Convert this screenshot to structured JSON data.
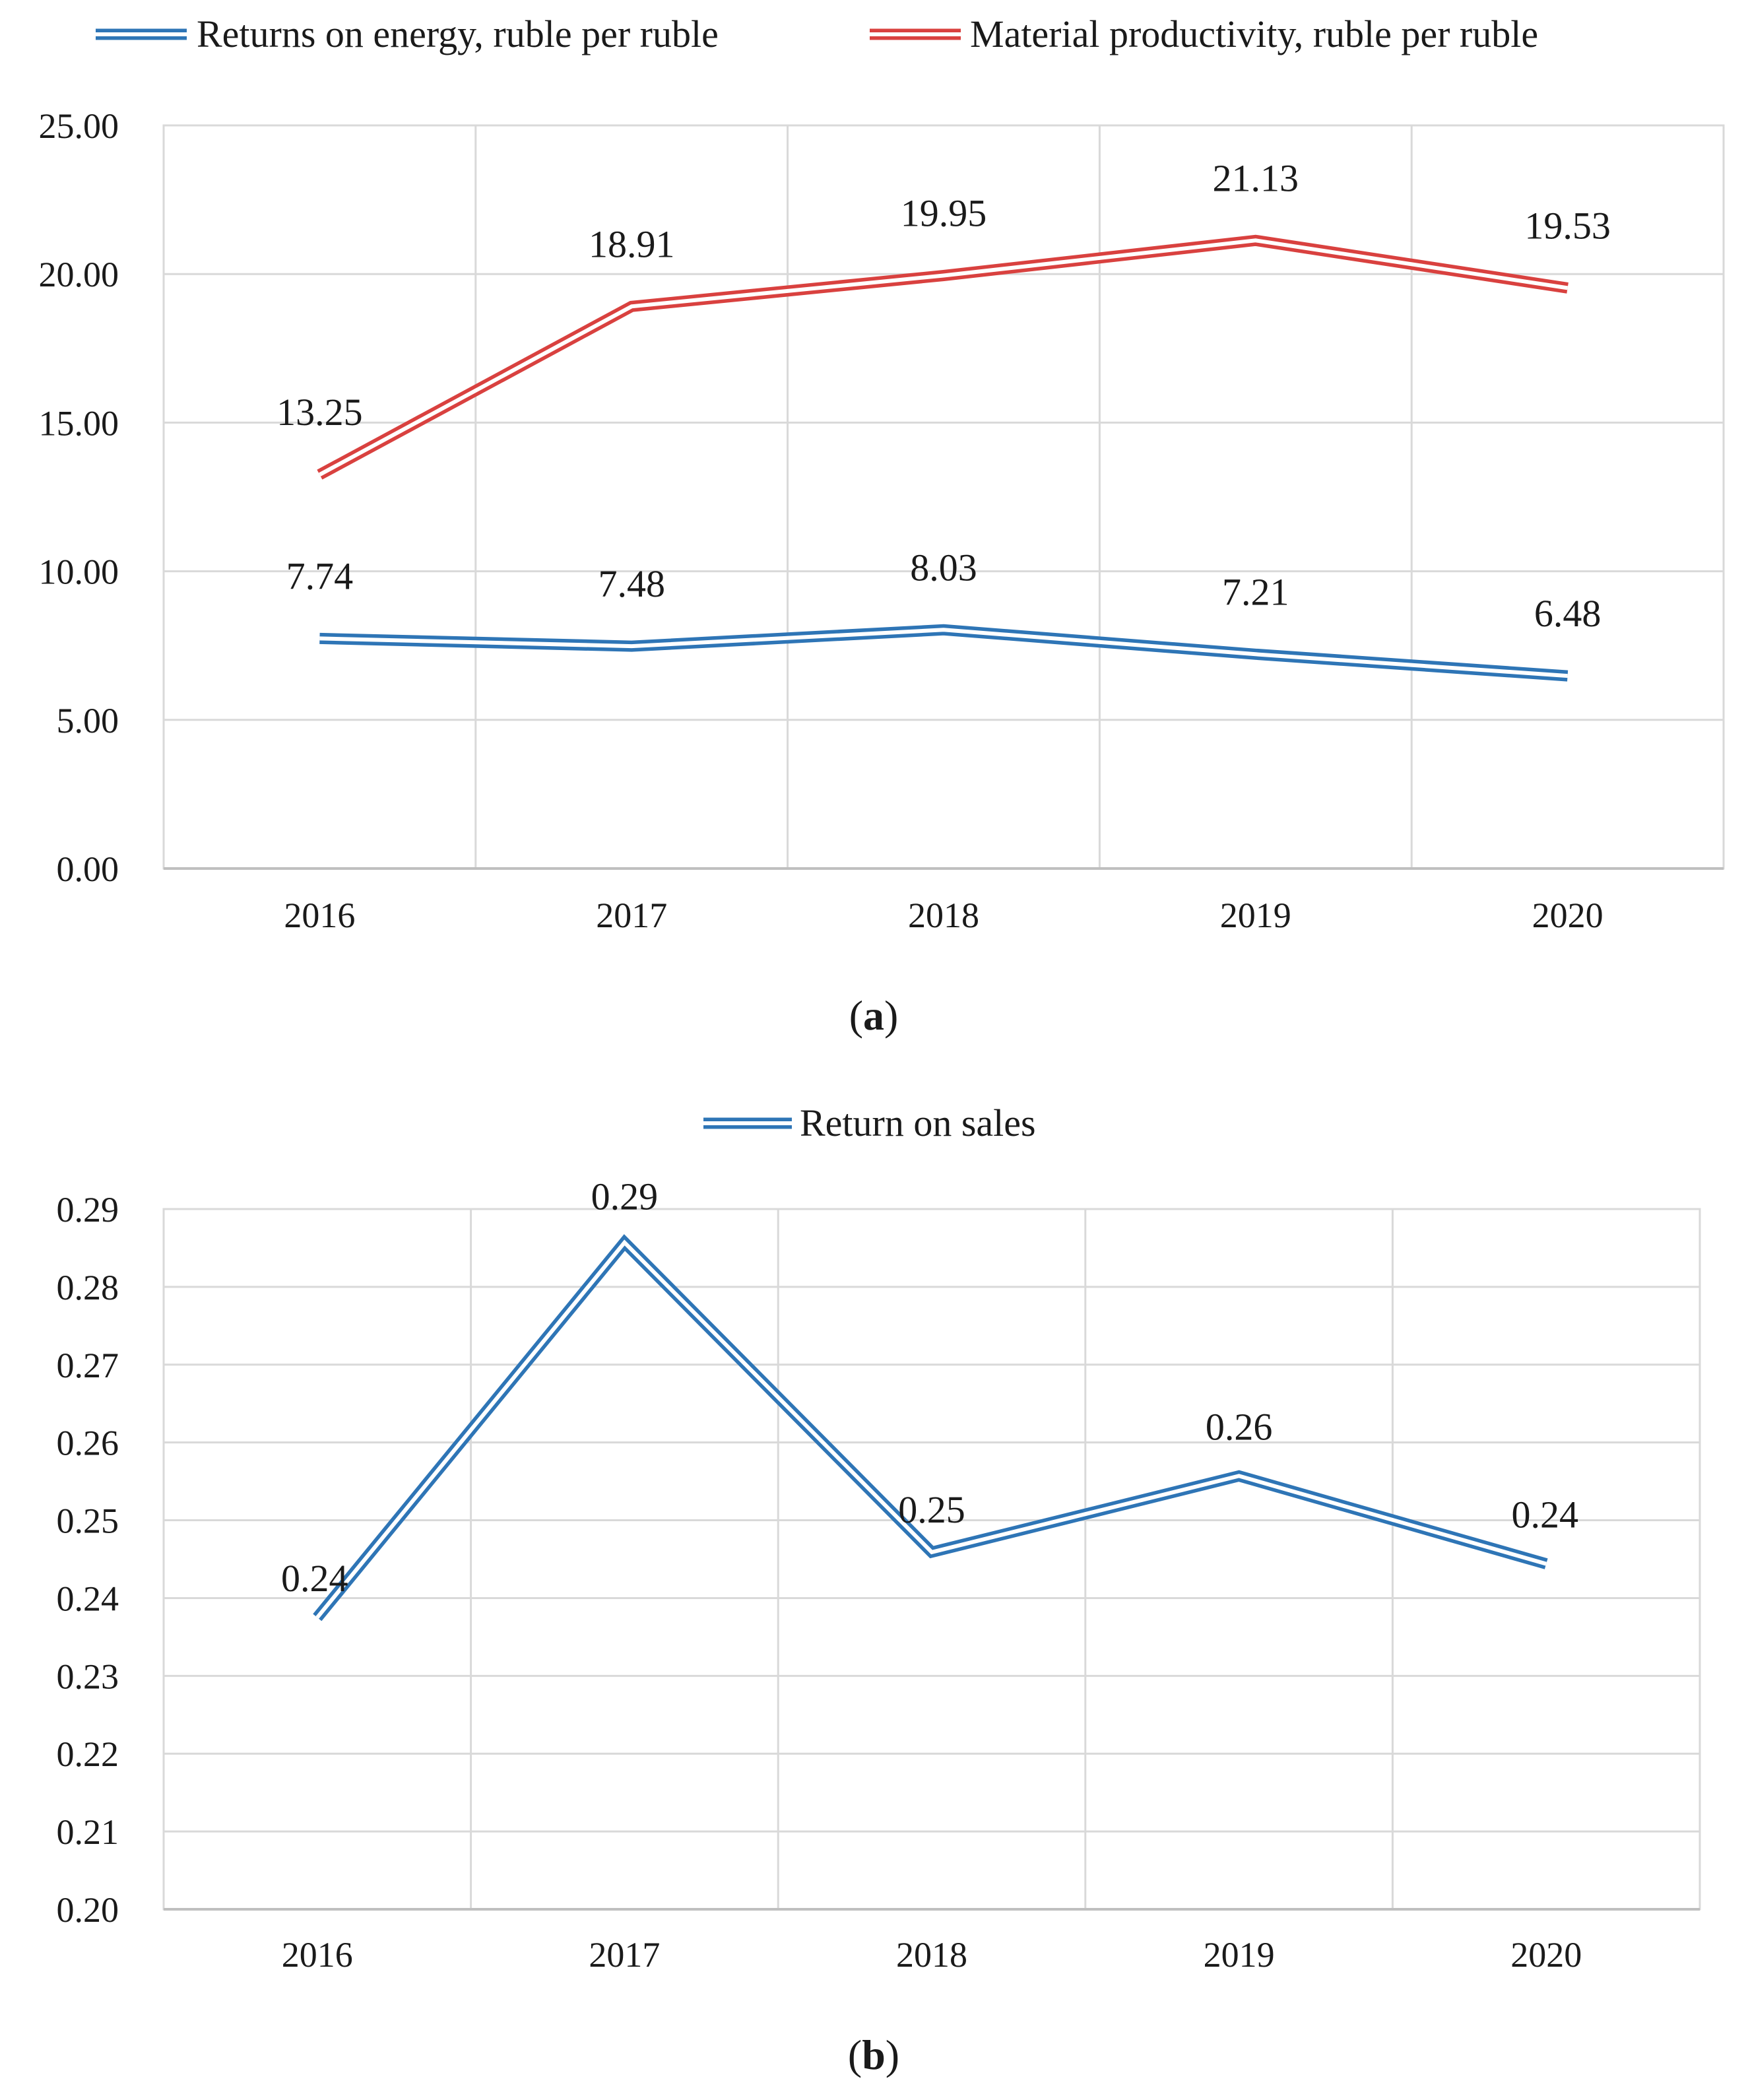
{
  "chart_data": [
    {
      "type": "line",
      "panel": "a",
      "caption_open": "(",
      "caption_letter": "a",
      "caption_close": ")",
      "categories": [
        "2016",
        "2017",
        "2018",
        "2019",
        "2020"
      ],
      "ylim": [
        0,
        25
      ],
      "yticks": [
        "0.00",
        "5.00",
        "10.00",
        "15.00",
        "20.00",
        "25.00"
      ],
      "grid": true,
      "legend_position": "top",
      "series": [
        {
          "name": "Returns on energy, ruble per ruble",
          "color": "#2e75b6",
          "values": [
            7.74,
            7.48,
            8.03,
            7.21,
            6.48
          ],
          "labels": [
            "7.74",
            "7.48",
            "8.03",
            "7.21",
            "6.48"
          ]
        },
        {
          "name": "Material productivity, ruble per ruble",
          "color": "#d9413f",
          "values": [
            13.25,
            18.91,
            19.95,
            21.13,
            19.53
          ],
          "labels": [
            "13.25",
            "18.91",
            "19.95",
            "21.13",
            "19.53"
          ]
        }
      ]
    },
    {
      "type": "line",
      "panel": "b",
      "caption_open": "(",
      "caption_letter": "b",
      "caption_close": ")",
      "categories": [
        "2016",
        "2017",
        "2018",
        "2019",
        "2020"
      ],
      "ylim": [
        0.2,
        0.29
      ],
      "yticks": [
        "0.20",
        "0.21",
        "0.22",
        "0.23",
        "0.24",
        "0.25",
        "0.26",
        "0.27",
        "0.28",
        "0.29"
      ],
      "grid": true,
      "legend_position": "top",
      "series": [
        {
          "name": "Return on sales",
          "color": "#2e75b6",
          "values": [
            0.2375,
            0.2857,
            0.2459,
            0.2557,
            0.2444
          ],
          "labels": [
            "0.24",
            "0.29",
            "0.25",
            "0.26",
            "0.24"
          ]
        }
      ]
    }
  ]
}
